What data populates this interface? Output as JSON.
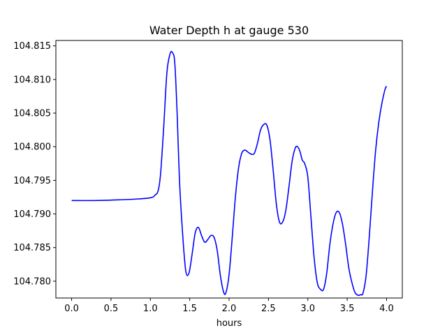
{
  "chart_data": {
    "type": "line",
    "title": "Water Depth h at gauge 530",
    "xlabel": "hours",
    "ylabel": "",
    "xlim": [
      -0.2,
      4.2
    ],
    "ylim": [
      104.7775,
      104.8158
    ],
    "grid": false,
    "xticks": [
      0.0,
      0.5,
      1.0,
      1.5,
      2.0,
      2.5,
      3.0,
      3.5,
      4.0
    ],
    "xtick_labels": [
      "0.0",
      "0.5",
      "1.0",
      "1.5",
      "2.0",
      "2.5",
      "3.0",
      "3.5",
      "4.0"
    ],
    "yticks": [
      104.78,
      104.785,
      104.79,
      104.795,
      104.8,
      104.805,
      104.81,
      104.815
    ],
    "ytick_labels": [
      "104.780",
      "104.785",
      "104.790",
      "104.795",
      "104.800",
      "104.805",
      "104.810",
      "104.815"
    ],
    "series": [
      {
        "color": "#0000ff",
        "x": [
          0.0,
          0.3,
          0.6,
          0.8,
          1.0,
          1.06,
          1.1,
          1.13,
          1.17,
          1.21,
          1.25,
          1.28,
          1.31,
          1.34,
          1.37,
          1.41,
          1.45,
          1.49,
          1.53,
          1.57,
          1.61,
          1.65,
          1.69,
          1.73,
          1.77,
          1.81,
          1.85,
          1.89,
          1.93,
          1.96,
          2.0,
          2.04,
          2.08,
          2.12,
          2.16,
          2.2,
          2.24,
          2.28,
          2.32,
          2.36,
          2.4,
          2.44,
          2.48,
          2.52,
          2.56,
          2.6,
          2.64,
          2.68,
          2.72,
          2.76,
          2.8,
          2.84,
          2.87,
          2.9,
          2.93,
          2.96,
          3.0,
          3.04,
          3.08,
          3.12,
          3.16,
          3.2,
          3.24,
          3.28,
          3.32,
          3.36,
          3.4,
          3.44,
          3.48,
          3.52,
          3.56,
          3.6,
          3.64,
          3.67,
          3.7,
          3.74,
          3.78,
          3.82,
          3.86,
          3.9,
          3.94,
          3.98,
          4.0
        ],
        "y": [
          104.792,
          104.792,
          104.7921,
          104.7922,
          104.7924,
          104.7928,
          104.7935,
          104.796,
          104.803,
          104.811,
          104.8138,
          104.814,
          104.8125,
          104.805,
          104.795,
          104.787,
          104.7815,
          104.7812,
          104.784,
          104.7872,
          104.788,
          104.7868,
          104.7858,
          104.7862,
          104.7868,
          104.7865,
          104.7845,
          104.7808,
          104.7784,
          104.7783,
          104.781,
          104.7865,
          104.7925,
          104.7968,
          104.799,
          104.7995,
          104.7992,
          104.7989,
          104.799,
          104.8005,
          104.8025,
          104.8033,
          104.8032,
          104.801,
          104.7965,
          104.7915,
          104.7888,
          104.7888,
          104.7905,
          104.794,
          104.7978,
          104.7998,
          104.8,
          104.7993,
          104.798,
          104.7975,
          104.7955,
          104.7895,
          104.7835,
          104.7798,
          104.7788,
          104.7788,
          104.7812,
          104.7855,
          104.7885,
          104.7902,
          104.7902,
          104.7885,
          104.7855,
          104.782,
          104.7798,
          104.7783,
          104.7779,
          104.778,
          104.7782,
          104.7808,
          104.7865,
          104.7932,
          104.7993,
          104.8035,
          104.8064,
          104.8085,
          104.809
        ]
      }
    ]
  }
}
